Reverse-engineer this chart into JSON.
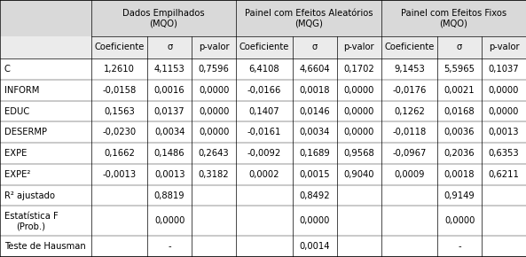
{
  "header1": [
    "Dados Empilhados\n(MQO)",
    "Painel com Efeitos Aleatórios\n(MQG)",
    "Painel com Efeitos Fixos\n(MQO)"
  ],
  "header2": [
    "Coeficiente",
    "σ",
    "p-valor",
    "Coeficiente",
    "σ",
    "p-valor",
    "Coeficiente",
    "σ",
    "p-valor"
  ],
  "row_labels": [
    "C",
    "INFORM",
    "EDUC",
    "DESERMP",
    "EXPE",
    "EXPE²",
    "R² ajustado",
    "Estatística F\n(Prob.)",
    "Teste de Hausman"
  ],
  "rows": [
    [
      "1,2610",
      "4,1153",
      "0,7596",
      "6,4108",
      "4,6604",
      "0,1702",
      "9,1453",
      "5,5965",
      "0,1037"
    ],
    [
      "-0,0158",
      "0,0016",
      "0,0000",
      "-0,0166",
      "0,0018",
      "0,0000",
      "-0,0176",
      "0,0021",
      "0,0000"
    ],
    [
      "0,1563",
      "0,0137",
      "0,0000",
      "0,1407",
      "0,0146",
      "0,0000",
      "0,1262",
      "0,0168",
      "0,0000"
    ],
    [
      "-0,0230",
      "0,0034",
      "0,0000",
      "-0,0161",
      "0,0034",
      "0,0000",
      "-0,0118",
      "0,0036",
      "0,0013"
    ],
    [
      "0,1662",
      "0,1486",
      "0,2643",
      "-0,0092",
      "0,1689",
      "0,9568",
      "-0,0967",
      "0,2036",
      "0,6353"
    ],
    [
      "-0,0013",
      "0,0013",
      "0,3182",
      "0,0002",
      "0,0015",
      "0,9040",
      "0,0009",
      "0,0018",
      "0,6211"
    ],
    [
      "",
      "0,8819",
      "",
      "",
      "0,8492",
      "",
      "",
      "0,9149",
      ""
    ],
    [
      "",
      "0,0000",
      "",
      "",
      "0,0000",
      "",
      "",
      "0,0000",
      ""
    ],
    [
      "",
      "-",
      "",
      "",
      "0,0014",
      "",
      "",
      "-",
      ""
    ]
  ],
  "bg_header": "#d9d9d9",
  "bg_subheader": "#ebebeb",
  "bg_white": "#ffffff",
  "font_size": 7.2,
  "figsize": [
    5.93,
    2.9
  ]
}
